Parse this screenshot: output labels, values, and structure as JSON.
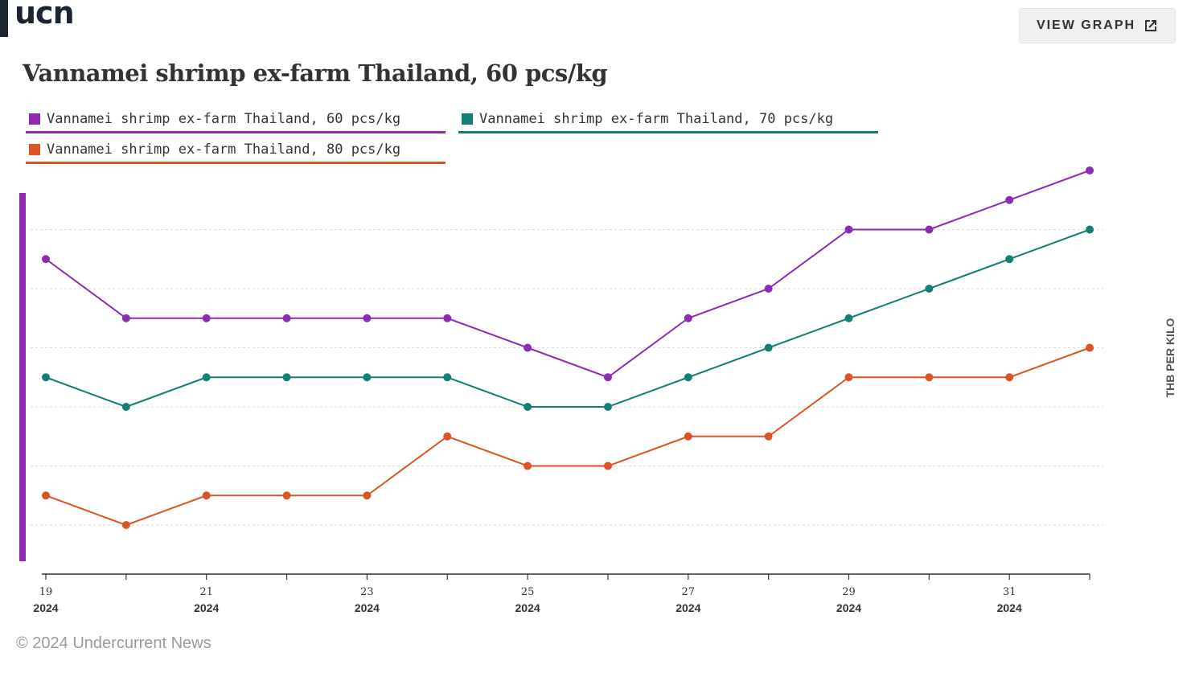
{
  "header": {
    "logo_text": "ucn",
    "view_graph_label": "VIEW GRAPH"
  },
  "footer": {
    "copyright": "© 2024 Undercurrent News"
  },
  "colors": {
    "series60": "#8e2bb5",
    "series70": "#138075",
    "series80": "#dd5424"
  },
  "chart_data": {
    "type": "line",
    "title": "Vannamei shrimp ex-farm Thailand, 60 pcs/kg",
    "ylabel": "THB PER KILO",
    "xlabel": "",
    "grid": true,
    "legend_position": "top-left",
    "x_tick_labels": [
      {
        "day": "19",
        "year": "2024"
      },
      {
        "day": "21",
        "year": "2024"
      },
      {
        "day": "23",
        "year": "2024"
      },
      {
        "day": "25",
        "year": "2024"
      },
      {
        "day": "27",
        "year": "2024"
      },
      {
        "day": "29",
        "year": "2024"
      },
      {
        "day": "31",
        "year": "2024"
      }
    ],
    "series": [
      {
        "name": "Vannamei shrimp ex-farm Thailand, 60 pcs/kg",
        "values": [
          11,
          9,
          9,
          9,
          9,
          9,
          8,
          7,
          9,
          10,
          12,
          12,
          13,
          14
        ]
      },
      {
        "name": "Vannamei shrimp ex-farm Thailand, 70 pcs/kg",
        "values": [
          7,
          6,
          7,
          7,
          7,
          7,
          6,
          6,
          7,
          8,
          9,
          10,
          11,
          12
        ]
      },
      {
        "name": "Vannamei shrimp ex-farm Thailand, 80 pcs/kg",
        "values": [
          3,
          2,
          3,
          3,
          3,
          5,
          4,
          4,
          5,
          5,
          7,
          7,
          7,
          8
        ]
      }
    ]
  }
}
